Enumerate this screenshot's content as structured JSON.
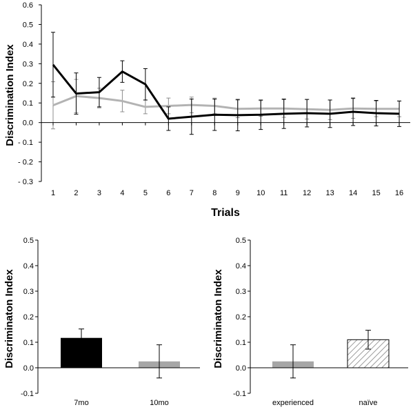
{
  "chart_data": [
    {
      "type": "line",
      "title": "",
      "xlabel": "Trials",
      "ylabel": "Discrimination Index",
      "x": [
        "1",
        "2",
        "3",
        "4",
        "5",
        "6",
        "7",
        "8",
        "9",
        "10",
        "11",
        "12",
        "13",
        "14",
        "15",
        "16"
      ],
      "ylim": [
        -0.3,
        0.6
      ],
      "yticks": [
        "0.6",
        "0.5",
        "0.4",
        "0.3",
        "0.2",
        "0.1",
        "0.0",
        "- 0.1",
        "- 0.2",
        "- 0.3"
      ],
      "grid": false,
      "series": [
        {
          "color": "#000000",
          "values": [
            0.295,
            0.148,
            0.155,
            0.26,
            0.195,
            0.02,
            0.03,
            0.04,
            0.038,
            0.04,
            0.045,
            0.048,
            0.045,
            0.055,
            0.048,
            0.045
          ],
          "error": [
            0.165,
            0.105,
            0.075,
            0.055,
            0.08,
            0.06,
            0.09,
            0.08,
            0.08,
            0.075,
            0.075,
            0.07,
            0.07,
            0.07,
            0.065,
            0.065
          ]
        },
        {
          "color": "#b3b3b3",
          "values": [
            0.088,
            0.135,
            0.125,
            0.11,
            0.08,
            0.085,
            0.09,
            0.085,
            0.07,
            0.072,
            0.072,
            0.068,
            0.065,
            0.072,
            0.07,
            0.07
          ],
          "error": [
            0.12,
            0.085,
            0.05,
            0.055,
            0.035,
            0.04,
            0.04,
            0.04,
            0.045,
            0.04,
            0.045,
            0.05,
            0.05,
            0.05,
            0.04,
            0.04
          ]
        }
      ]
    },
    {
      "type": "bar",
      "title": "",
      "xlabel": "",
      "ylabel": "Discriminaton Index",
      "categories": [
        "7mo",
        "10mo"
      ],
      "values": [
        0.117,
        0.025
      ],
      "error": [
        0.035,
        0.065
      ],
      "colors": [
        "#000000",
        "#a6a6a6"
      ],
      "ylim": [
        -0.1,
        0.5
      ],
      "yticks": [
        "0.5",
        "0.4",
        "0.3",
        "0.2",
        "0.1",
        "0.0",
        "-0.1"
      ]
    },
    {
      "type": "bar",
      "title": "",
      "xlabel": "",
      "ylabel": "Discriminaton Index",
      "categories": [
        "experienced",
        "naïve"
      ],
      "values": [
        0.025,
        0.11
      ],
      "error": [
        0.065,
        0.037
      ],
      "colors": [
        "#a6a6a6",
        "hatched"
      ],
      "ylim": [
        -0.1,
        0.5
      ],
      "yticks": [
        "0.5",
        "0.4",
        "0.3",
        "0.2",
        "0.1",
        "0.0",
        "-0.1"
      ]
    }
  ]
}
